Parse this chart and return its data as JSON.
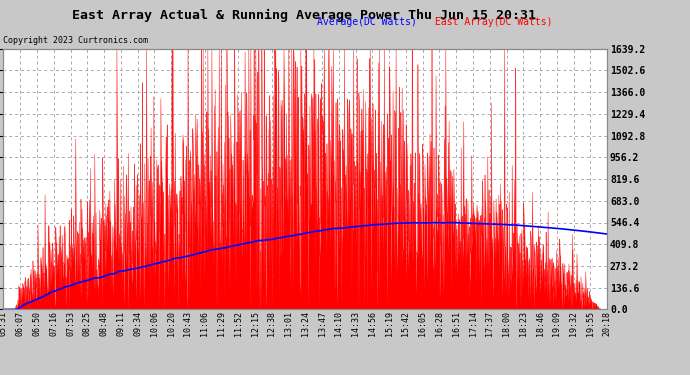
{
  "title": "East Array Actual & Running Average Power Thu Jun 15 20:31",
  "copyright": "Copyright 2023 Curtronics.com",
  "legend_avg": "Average(DC Watts)",
  "legend_east": "East Array(DC Watts)",
  "ymin": 0.0,
  "ymax": 1639.2,
  "yticks": [
    0.0,
    136.6,
    273.2,
    409.8,
    546.4,
    683.0,
    819.6,
    956.2,
    1092.8,
    1229.4,
    1366.0,
    1502.6,
    1639.2
  ],
  "bg_color": "#c8c8c8",
  "plot_bg_color": "#ffffff",
  "grid_color": "#aaaaaa",
  "fill_color": "#ff0000",
  "avg_line_color": "#0000ff",
  "title_color": "#000000",
  "copyright_color": "#000000",
  "legend_avg_color": "#0000ff",
  "legend_east_color": "#ff0000",
  "xtick_labels": [
    "05:31",
    "06:07",
    "06:50",
    "07:16",
    "07:53",
    "08:25",
    "08:48",
    "09:11",
    "09:34",
    "10:06",
    "10:20",
    "10:43",
    "11:06",
    "11:29",
    "11:52",
    "12:15",
    "12:38",
    "13:01",
    "13:24",
    "13:47",
    "14:10",
    "14:33",
    "14:56",
    "15:19",
    "15:42",
    "16:05",
    "16:28",
    "16:51",
    "17:14",
    "17:37",
    "18:00",
    "18:23",
    "18:46",
    "19:09",
    "19:32",
    "19:55",
    "20:18"
  ]
}
